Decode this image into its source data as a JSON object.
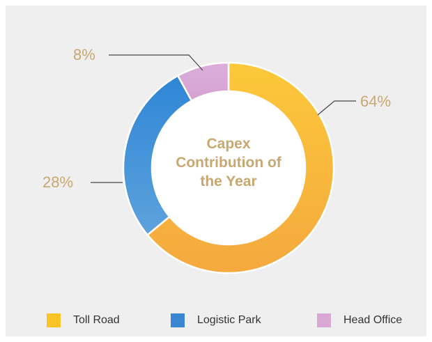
{
  "chart_data": {
    "type": "pie",
    "variant": "donut",
    "title": "Capex Contribution of the Year",
    "title_lines": [
      "Capex",
      "Contribution of",
      "the Year"
    ],
    "slices": [
      {
        "name": "Toll Road",
        "value": 64,
        "label": "64%",
        "color": "#f6b43c"
      },
      {
        "name": "Logistic Park",
        "value": 28,
        "label": "28%",
        "color": "#3f94d8"
      },
      {
        "name": "Head Office",
        "value": 8,
        "label": "8%",
        "color": "#d8a8d4"
      }
    ],
    "legend_placement": "bottom"
  },
  "colors": {
    "background": "#efefef",
    "label_text": "#c8a870",
    "legend_swatches": [
      "#f9c425",
      "#3b86d2",
      "#d9a8d3"
    ]
  }
}
